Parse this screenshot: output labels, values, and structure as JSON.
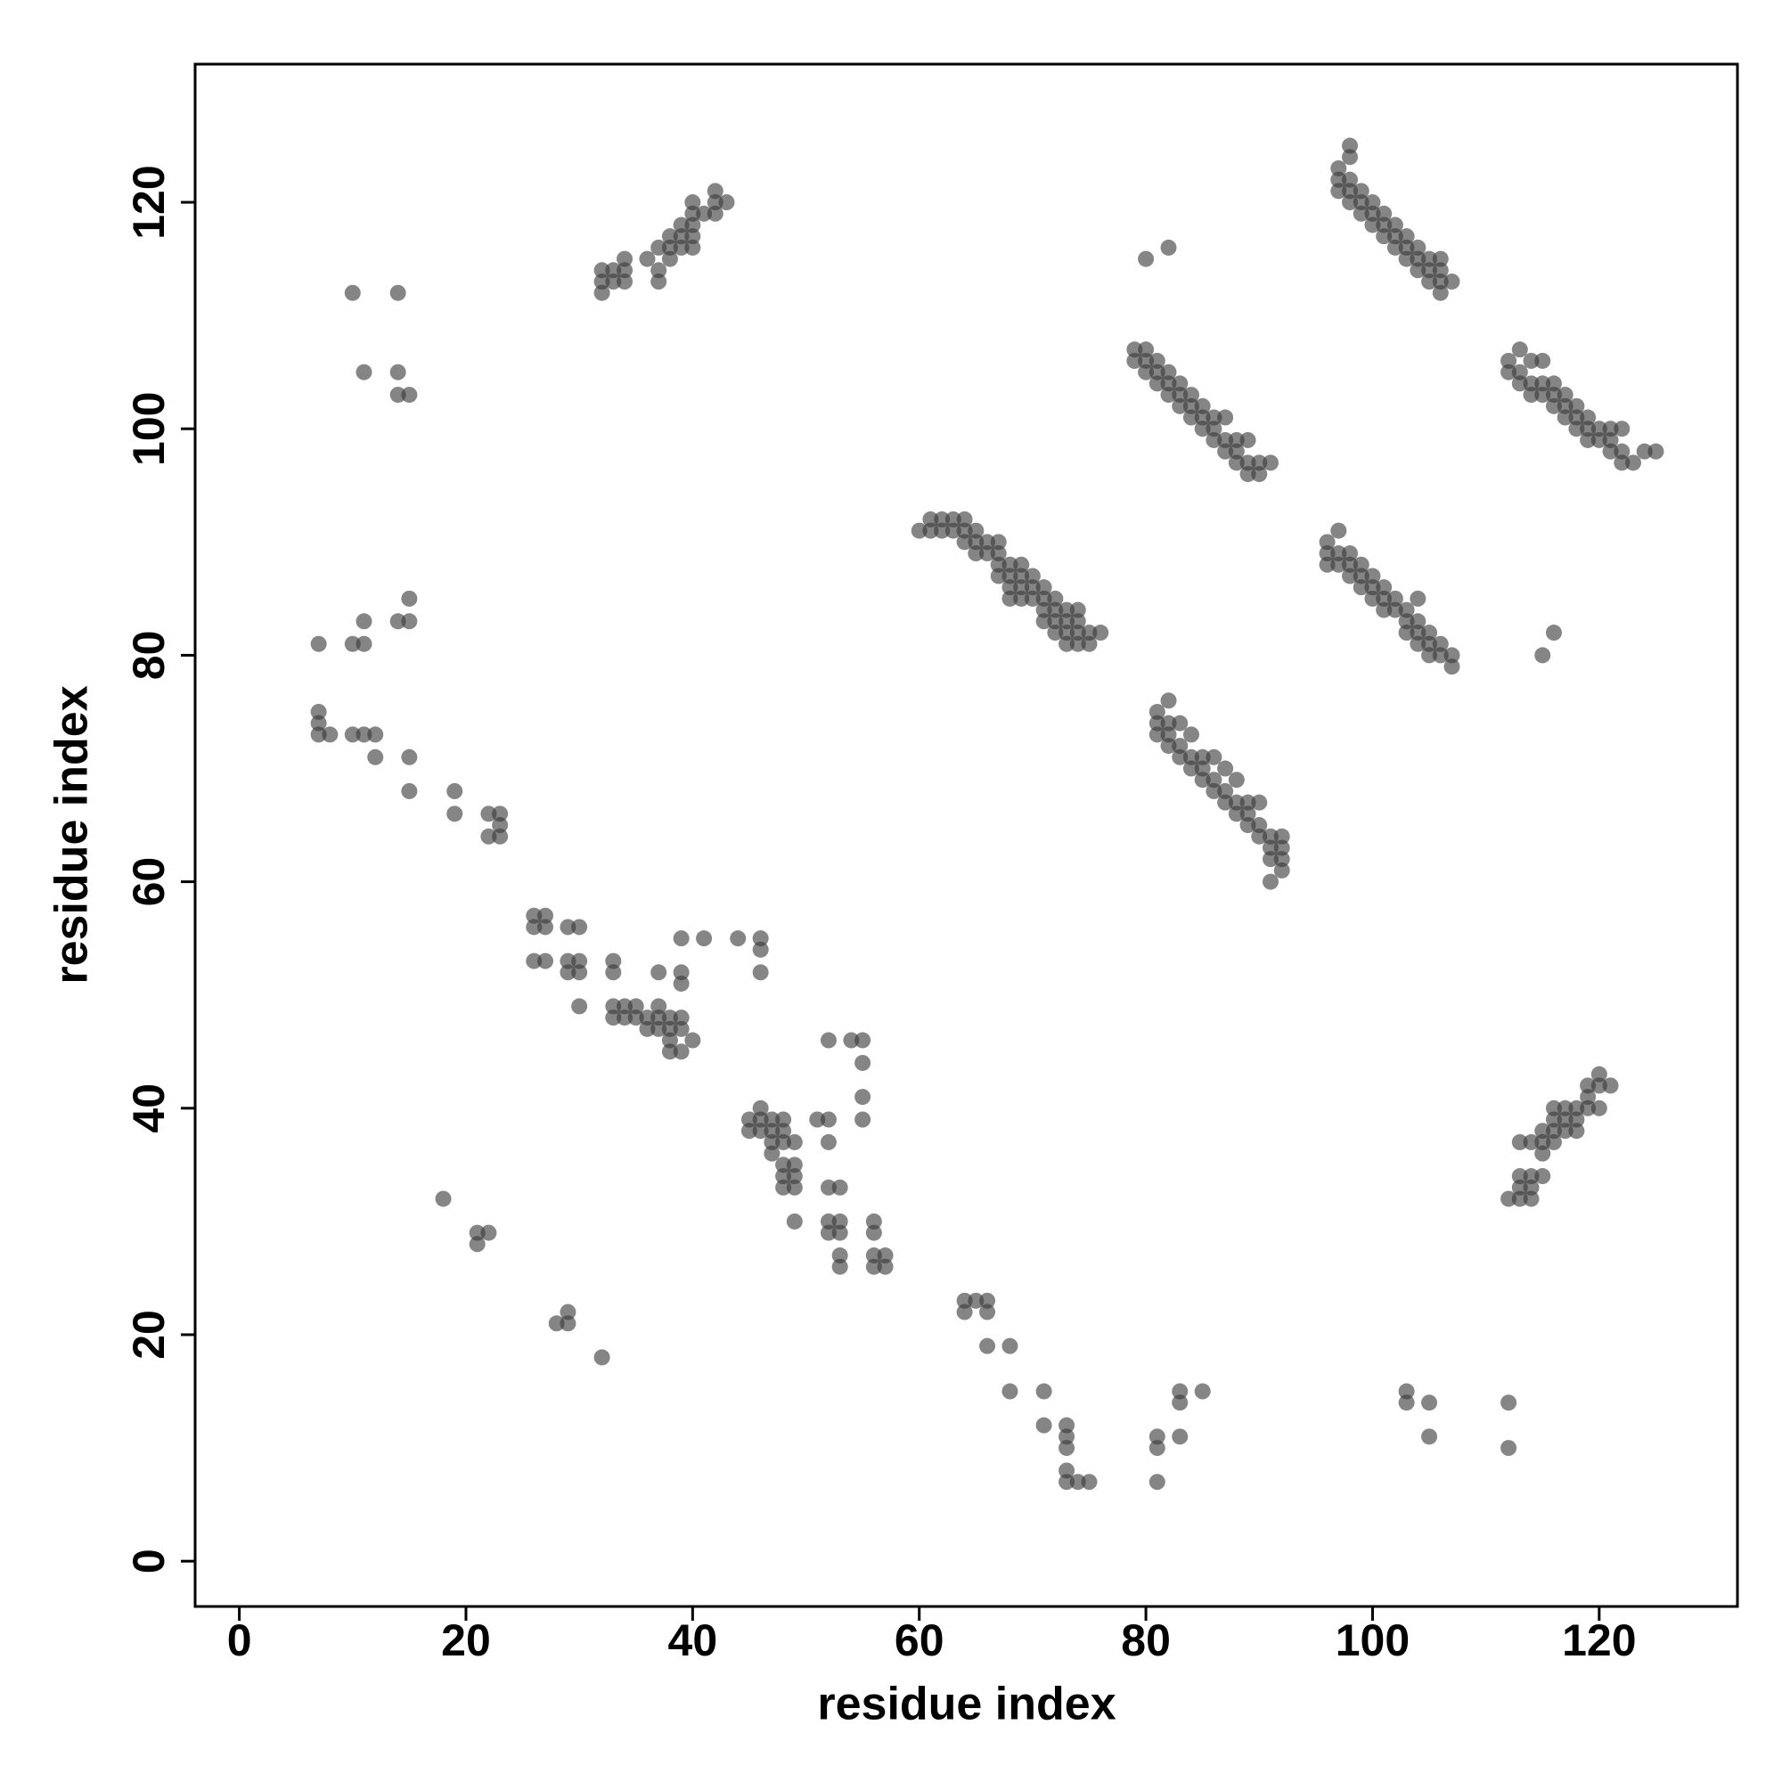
{
  "chart_data": {
    "type": "scatter",
    "xlabel": "residue index",
    "ylabel": "residue index",
    "color": "#3a3a3a",
    "alpha": 0.62,
    "xlim": [
      -3.9,
      132.2
    ],
    "ylim": [
      -4,
      132.2
    ],
    "xticks": [
      0,
      20,
      40,
      60,
      80,
      100,
      120
    ],
    "yticks": [
      0,
      20,
      40,
      60,
      80,
      100,
      120
    ],
    "x": [
      32,
      32,
      32,
      33,
      33,
      34,
      34,
      34,
      36,
      37,
      37,
      37,
      38,
      38,
      38,
      39,
      39,
      39,
      40,
      40,
      40,
      40,
      40,
      41,
      42,
      42,
      42,
      43,
      97,
      97,
      97,
      98,
      98,
      98,
      98,
      98,
      99,
      99,
      99,
      100,
      100,
      100,
      101,
      101,
      101,
      102,
      102,
      102,
      103,
      103,
      103,
      104,
      104,
      104,
      105,
      105,
      105,
      106,
      106,
      106,
      106,
      107,
      79,
      79,
      80,
      80,
      80,
      81,
      81,
      81,
      82,
      82,
      82,
      83,
      83,
      83,
      84,
      84,
      84,
      85,
      85,
      85,
      86,
      86,
      86,
      87,
      87,
      87,
      88,
      88,
      88,
      89,
      89,
      89,
      90,
      90,
      91,
      112,
      112,
      113,
      113,
      113,
      114,
      114,
      114,
      115,
      115,
      115,
      116,
      116,
      116,
      117,
      117,
      117,
      118,
      118,
      118,
      119,
      119,
      119,
      120,
      120,
      121,
      121,
      121,
      122,
      122,
      122,
      123,
      124,
      125,
      60,
      61,
      61,
      62,
      62,
      63,
      63,
      64,
      64,
      64,
      65,
      65,
      65,
      66,
      66,
      67,
      67,
      67,
      67,
      68,
      68,
      68,
      68,
      69,
      69,
      69,
      69,
      70,
      70,
      70,
      71,
      71,
      71,
      71,
      72,
      72,
      72,
      72,
      73,
      73,
      73,
      73,
      74,
      74,
      74,
      74,
      75,
      75,
      76,
      96,
      96,
      96,
      97,
      97,
      97,
      98,
      98,
      98,
      99,
      99,
      99,
      100,
      100,
      100,
      101,
      101,
      101,
      102,
      102,
      103,
      103,
      103,
      104,
      104,
      104,
      104,
      105,
      105,
      105,
      106,
      106,
      107,
      107,
      81,
      81,
      81,
      82,
      82,
      82,
      82,
      83,
      83,
      83,
      84,
      84,
      84,
      85,
      85,
      85,
      86,
      86,
      86,
      87,
      87,
      87,
      88,
      88,
      88,
      89,
      89,
      89,
      90,
      90,
      90,
      91,
      91,
      91,
      91,
      92,
      92,
      92,
      92,
      112,
      113,
      113,
      113,
      113,
      114,
      114,
      114,
      114,
      115,
      115,
      115,
      115,
      116,
      116,
      116,
      116,
      117,
      117,
      117,
      118,
      118,
      118,
      119,
      119,
      119,
      120,
      120,
      120,
      121,
      7,
      7,
      7,
      7,
      8,
      10,
      10,
      10,
      11,
      11,
      11,
      11,
      12,
      12,
      14,
      14,
      14,
      14,
      15,
      15,
      15,
      15,
      15,
      18,
      19,
      19,
      21,
      21,
      22,
      22,
      22,
      23,
      23,
      23,
      26,
      26,
      26,
      27,
      27,
      27,
      28,
      29,
      29,
      29,
      29,
      29,
      30,
      30,
      30,
      30,
      32,
      33,
      33,
      33,
      33,
      34,
      34,
      35,
      35,
      36,
      36,
      37,
      37,
      37,
      37,
      38,
      38,
      38,
      38,
      39,
      39,
      39,
      39,
      39,
      39,
      40,
      41,
      44,
      46,
      46,
      46,
      45,
      45,
      46,
      46,
      46,
      47,
      47,
      47,
      47,
      48,
      48,
      48,
      48,
      48,
      48,
      49,
      49,
      49,
      49,
      49,
      51,
      52,
      52,
      52,
      52,
      52,
      52,
      53,
      53,
      53,
      53,
      53,
      54,
      55,
      55,
      55,
      55,
      56,
      56,
      56,
      56,
      57,
      57,
      64,
      64,
      65,
      66,
      66,
      66,
      68,
      68,
      71,
      71,
      73,
      73,
      73,
      73,
      73,
      74,
      75,
      80,
      82,
      81,
      81,
      81,
      83,
      83,
      83,
      85,
      103,
      103,
      105,
      105,
      112,
      112,
      115,
      116
    ],
    "y": [
      112,
      113,
      114,
      113,
      114,
      113,
      114,
      115,
      115,
      113,
      114,
      116,
      115,
      116,
      117,
      116,
      117,
      118,
      116,
      117,
      118,
      119,
      120,
      119,
      119,
      120,
      121,
      120,
      121,
      122,
      123,
      120,
      121,
      122,
      124,
      125,
      119,
      120,
      121,
      118,
      119,
      120,
      117,
      118,
      119,
      116,
      117,
      118,
      115,
      116,
      117,
      114,
      115,
      116,
      113,
      114,
      115,
      112,
      113,
      114,
      115,
      113,
      106,
      107,
      105,
      106,
      107,
      104,
      105,
      106,
      103,
      104,
      105,
      102,
      103,
      104,
      101,
      102,
      103,
      100,
      101,
      102,
      99,
      100,
      101,
      98,
      99,
      101,
      97,
      98,
      99,
      96,
      97,
      99,
      96,
      97,
      97,
      105,
      106,
      104,
      105,
      107,
      103,
      104,
      106,
      103,
      104,
      106,
      102,
      103,
      104,
      101,
      102,
      103,
      100,
      101,
      102,
      99,
      100,
      101,
      99,
      100,
      98,
      99,
      100,
      97,
      98,
      100,
      97,
      98,
      98,
      91,
      91,
      92,
      91,
      92,
      92,
      91,
      92,
      91,
      90,
      91,
      90,
      89,
      90,
      89,
      90,
      89,
      88,
      87,
      88,
      87,
      86,
      85,
      88,
      87,
      86,
      85,
      87,
      86,
      85,
      86,
      85,
      84,
      83,
      85,
      84,
      83,
      82,
      84,
      83,
      82,
      81,
      84,
      83,
      82,
      81,
      82,
      81,
      82,
      88,
      89,
      90,
      88,
      89,
      91,
      87,
      88,
      89,
      86,
      87,
      88,
      85,
      86,
      87,
      84,
      85,
      86,
      84,
      85,
      82,
      83,
      84,
      81,
      82,
      83,
      85,
      80,
      81,
      82,
      80,
      81,
      79,
      80,
      73,
      74,
      75,
      72,
      73,
      74,
      76,
      71,
      72,
      74,
      70,
      71,
      73,
      69,
      70,
      71,
      68,
      69,
      71,
      67,
      68,
      70,
      66,
      67,
      69,
      65,
      66,
      67,
      64,
      65,
      67,
      60,
      62,
      63,
      64,
      61,
      62,
      63,
      64,
      32,
      32,
      33,
      34,
      37,
      32,
      33,
      34,
      37,
      34,
      36,
      37,
      38,
      37,
      38,
      39,
      40,
      38,
      39,
      40,
      38,
      39,
      40,
      40,
      41,
      42,
      40,
      42,
      43,
      42,
      81,
      75,
      74,
      73,
      73,
      112,
      81,
      73,
      105,
      83,
      81,
      73,
      73,
      71,
      112,
      105,
      103,
      83,
      103,
      85,
      83,
      71,
      68,
      32,
      68,
      66,
      29,
      28,
      66,
      64,
      29,
      66,
      65,
      64,
      57,
      56,
      53,
      57,
      56,
      53,
      21,
      56,
      53,
      52,
      22,
      21,
      56,
      53,
      52,
      49,
      18,
      53,
      52,
      49,
      48,
      49,
      48,
      49,
      48,
      48,
      47,
      52,
      49,
      48,
      47,
      48,
      47,
      46,
      45,
      55,
      52,
      51,
      48,
      47,
      45,
      46,
      55,
      55,
      55,
      54,
      52,
      39,
      38,
      40,
      39,
      38,
      39,
      38,
      37,
      36,
      39,
      38,
      37,
      35,
      34,
      33,
      37,
      35,
      34,
      33,
      30,
      39,
      46,
      39,
      37,
      33,
      30,
      29,
      33,
      30,
      29,
      27,
      26,
      46,
      46,
      44,
      41,
      39,
      30,
      29,
      27,
      26,
      27,
      26,
      23,
      22,
      23,
      23,
      22,
      19,
      19,
      15,
      15,
      12,
      12,
      11,
      10,
      8,
      7,
      7,
      7,
      115,
      116,
      11,
      10,
      7,
      15,
      14,
      11,
      15,
      15,
      14,
      14,
      11,
      14,
      10,
      80,
      82
    ]
  }
}
